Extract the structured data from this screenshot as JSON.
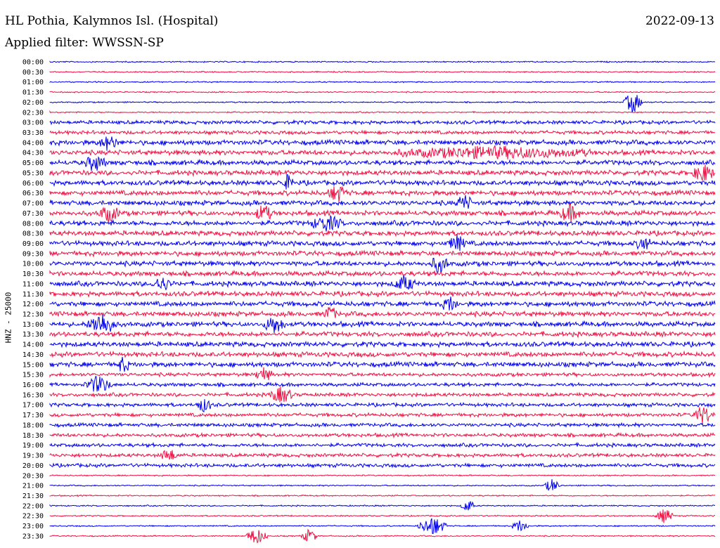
{
  "header": {
    "station": "HL Pothia, Kalymnos Isl. (Hospital)",
    "date": "2022-09-13",
    "filter": "Applied filter: WWSSN-SP"
  },
  "chart_data": {
    "type": "line",
    "ylabel": "HNZ - 25000",
    "colors": [
      "#0000ee",
      "#ee1144"
    ],
    "rows": [
      "00:00",
      "00:30",
      "01:00",
      "01:30",
      "02:00",
      "02:30",
      "03:00",
      "03:30",
      "04:00",
      "04:30",
      "05:00",
      "05:30",
      "06:00",
      "06:30",
      "07:00",
      "07:30",
      "08:00",
      "08:30",
      "09:00",
      "09:30",
      "10:00",
      "10:30",
      "11:00",
      "11:30",
      "12:00",
      "12:30",
      "13:00",
      "13:30",
      "14:00",
      "14:30",
      "15:00",
      "15:30",
      "16:00",
      "16:30",
      "17:00",
      "17:30",
      "18:00",
      "18:30",
      "19:00",
      "19:30",
      "20:00",
      "20:30",
      "21:00",
      "21:30",
      "22:00",
      "22:30",
      "23:00",
      "23:30"
    ]
  }
}
